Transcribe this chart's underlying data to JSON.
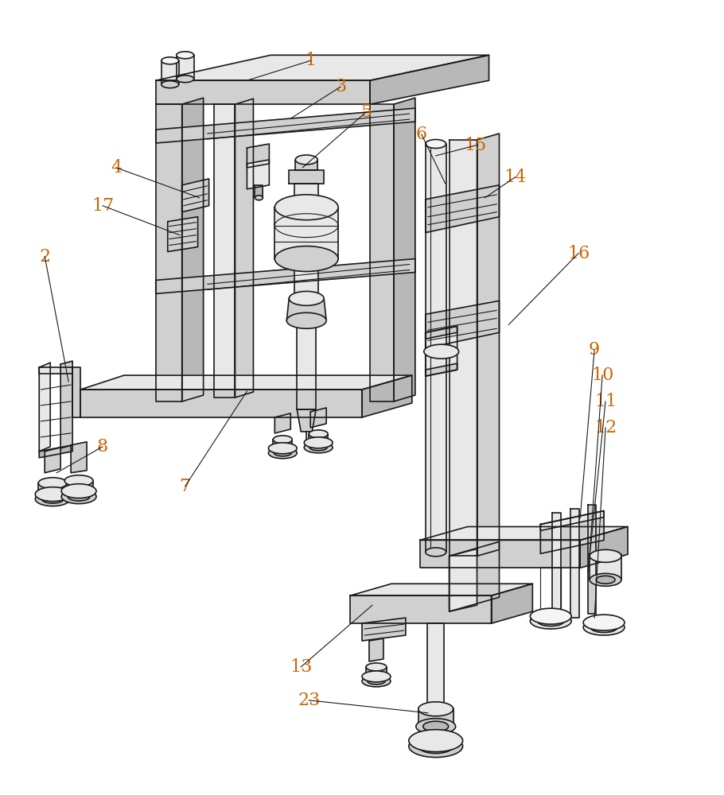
{
  "bg_color": "#ffffff",
  "line_color": "#1a1a1a",
  "label_color": "#cc6600",
  "fill_light": "#e8e8e8",
  "fill_mid": "#d0d0d0",
  "fill_dark": "#b8b8b8",
  "fill_white": "#f5f5f5",
  "figsize": [
    9.1,
    10.0
  ],
  "dpi": 100
}
